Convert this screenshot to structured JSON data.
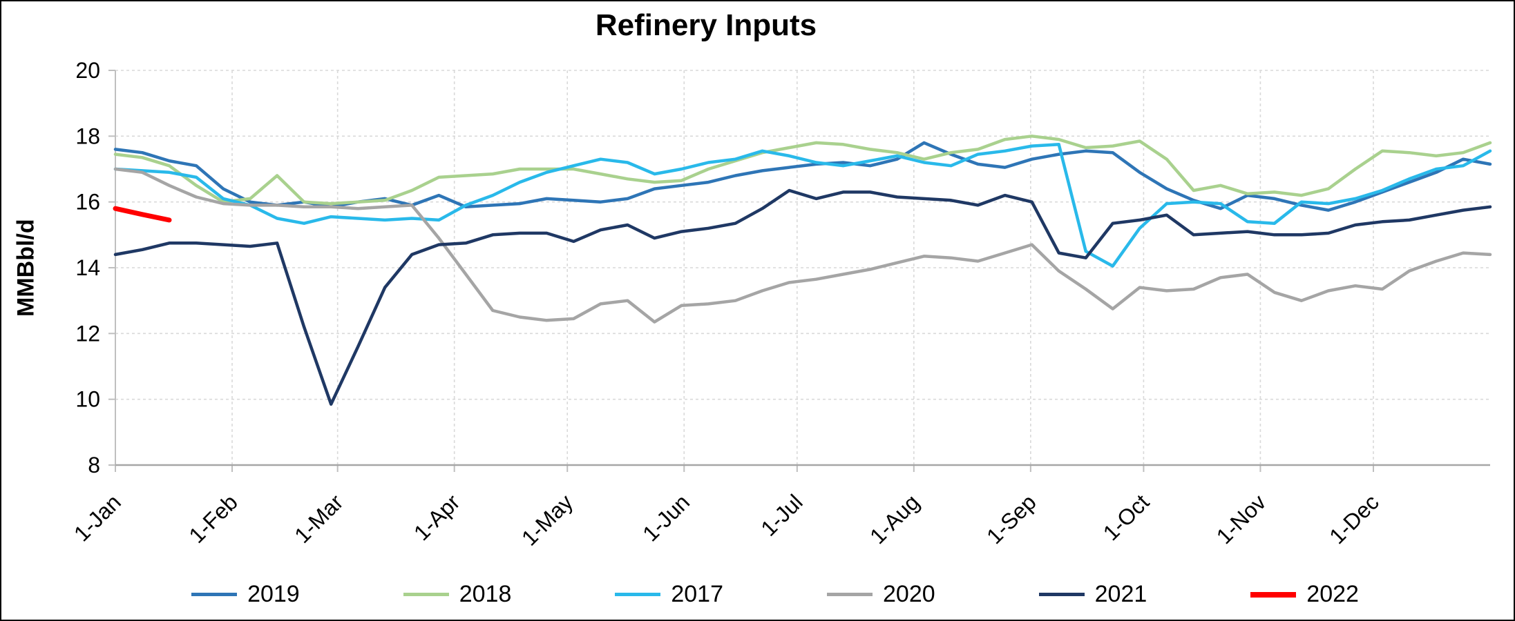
{
  "chart_data": {
    "type": "line",
    "title": "Refinery Inputs",
    "ylabel": "MMBbl/d",
    "ylim": [
      8,
      20
    ],
    "yticks": [
      8,
      10,
      12,
      14,
      16,
      18,
      20
    ],
    "x_unit": "weekly",
    "xtick_labels": [
      "1-Jan",
      "1-Feb",
      "1-Mar",
      "1-Apr",
      "1-May",
      "1-Jun",
      "1-Jul",
      "1-Aug",
      "1-Sep",
      "1-Oct",
      "1-Nov",
      "1-Dec"
    ],
    "grid": "dashed horizontal and vertical gridlines",
    "legend_position": "bottom",
    "series": [
      {
        "name": "2019",
        "color": "#2e75b6",
        "values": [
          17.6,
          17.5,
          17.25,
          17.1,
          16.4,
          16.0,
          15.9,
          16.0,
          15.85,
          16.0,
          16.1,
          15.9,
          16.2,
          15.85,
          15.9,
          15.95,
          16.1,
          16.05,
          16.0,
          16.1,
          16.4,
          16.5,
          16.6,
          16.8,
          16.95,
          17.05,
          17.15,
          17.2,
          17.1,
          17.3,
          17.8,
          17.45,
          17.15,
          17.05,
          17.3,
          17.45,
          17.55,
          17.5,
          16.9,
          16.4,
          16.05,
          15.8,
          16.2,
          16.1,
          15.9,
          15.75,
          16.0,
          16.3,
          16.6,
          16.9,
          17.3,
          17.15
        ]
      },
      {
        "name": "2018",
        "color": "#a9d18e",
        "values": [
          17.45,
          17.35,
          17.1,
          16.5,
          16.0,
          16.1,
          16.8,
          16.0,
          15.95,
          16.0,
          16.05,
          16.35,
          16.75,
          16.8,
          16.85,
          17.0,
          17.0,
          17.0,
          16.85,
          16.7,
          16.6,
          16.65,
          17.0,
          17.25,
          17.5,
          17.65,
          17.8,
          17.75,
          17.6,
          17.5,
          17.3,
          17.5,
          17.6,
          17.9,
          18.0,
          17.9,
          17.65,
          17.7,
          17.85,
          17.3,
          16.35,
          16.5,
          16.25,
          16.3,
          16.2,
          16.4,
          17.0,
          17.55,
          17.5,
          17.4,
          17.5,
          17.8
        ]
      },
      {
        "name": "2017",
        "color": "#29b9ea",
        "values": [
          17.0,
          16.95,
          16.9,
          16.75,
          16.1,
          15.9,
          15.5,
          15.35,
          15.55,
          15.5,
          15.45,
          15.5,
          15.45,
          15.9,
          16.2,
          16.6,
          16.9,
          17.1,
          17.3,
          17.2,
          16.85,
          17.0,
          17.2,
          17.3,
          17.55,
          17.4,
          17.2,
          17.1,
          17.25,
          17.4,
          17.2,
          17.1,
          17.45,
          17.55,
          17.7,
          17.75,
          14.5,
          14.05,
          15.2,
          15.95,
          16.0,
          15.95,
          15.4,
          15.35,
          16.0,
          15.95,
          16.1,
          16.35,
          16.7,
          17.0,
          17.1,
          17.55
        ]
      },
      {
        "name": "2020",
        "color": "#a5a5a5",
        "values": [
          17.0,
          16.9,
          16.5,
          16.15,
          15.95,
          15.9,
          15.9,
          15.85,
          15.85,
          15.8,
          15.85,
          15.9,
          14.9,
          13.8,
          12.7,
          12.5,
          12.4,
          12.45,
          12.9,
          13.0,
          12.35,
          12.85,
          12.9,
          13.0,
          13.3,
          13.55,
          13.65,
          13.8,
          13.95,
          14.15,
          14.35,
          14.3,
          14.2,
          14.45,
          14.7,
          13.9,
          13.35,
          12.75,
          13.4,
          13.3,
          13.35,
          13.7,
          13.8,
          13.25,
          13.0,
          13.3,
          13.45,
          13.35,
          13.9,
          14.2,
          14.45,
          14.4
        ]
      },
      {
        "name": "2021",
        "color": "#1f3864",
        "values": [
          14.4,
          14.55,
          14.75,
          14.75,
          14.7,
          14.65,
          14.75,
          12.2,
          9.85,
          11.6,
          13.4,
          14.4,
          14.7,
          14.75,
          15.0,
          15.05,
          15.05,
          14.8,
          15.15,
          15.3,
          14.9,
          15.1,
          15.2,
          15.35,
          15.8,
          16.35,
          16.1,
          16.3,
          16.3,
          16.15,
          16.1,
          16.05,
          15.9,
          16.2,
          16.0,
          14.45,
          14.3,
          15.35,
          15.45,
          15.6,
          15.0,
          15.05,
          15.1,
          15.0,
          15.0,
          15.05,
          15.3,
          15.4,
          15.45,
          15.6,
          15.75,
          15.85
        ]
      },
      {
        "name": "2022",
        "color": "#ff0000",
        "values": [
          15.8,
          15.62,
          15.45
        ]
      }
    ]
  },
  "style": {
    "grid_color": "#d9d9d9",
    "axis_color": "#bfbfbf",
    "bottom_axis_color": "#a6a6a6",
    "tick_label_color": "#000000"
  }
}
